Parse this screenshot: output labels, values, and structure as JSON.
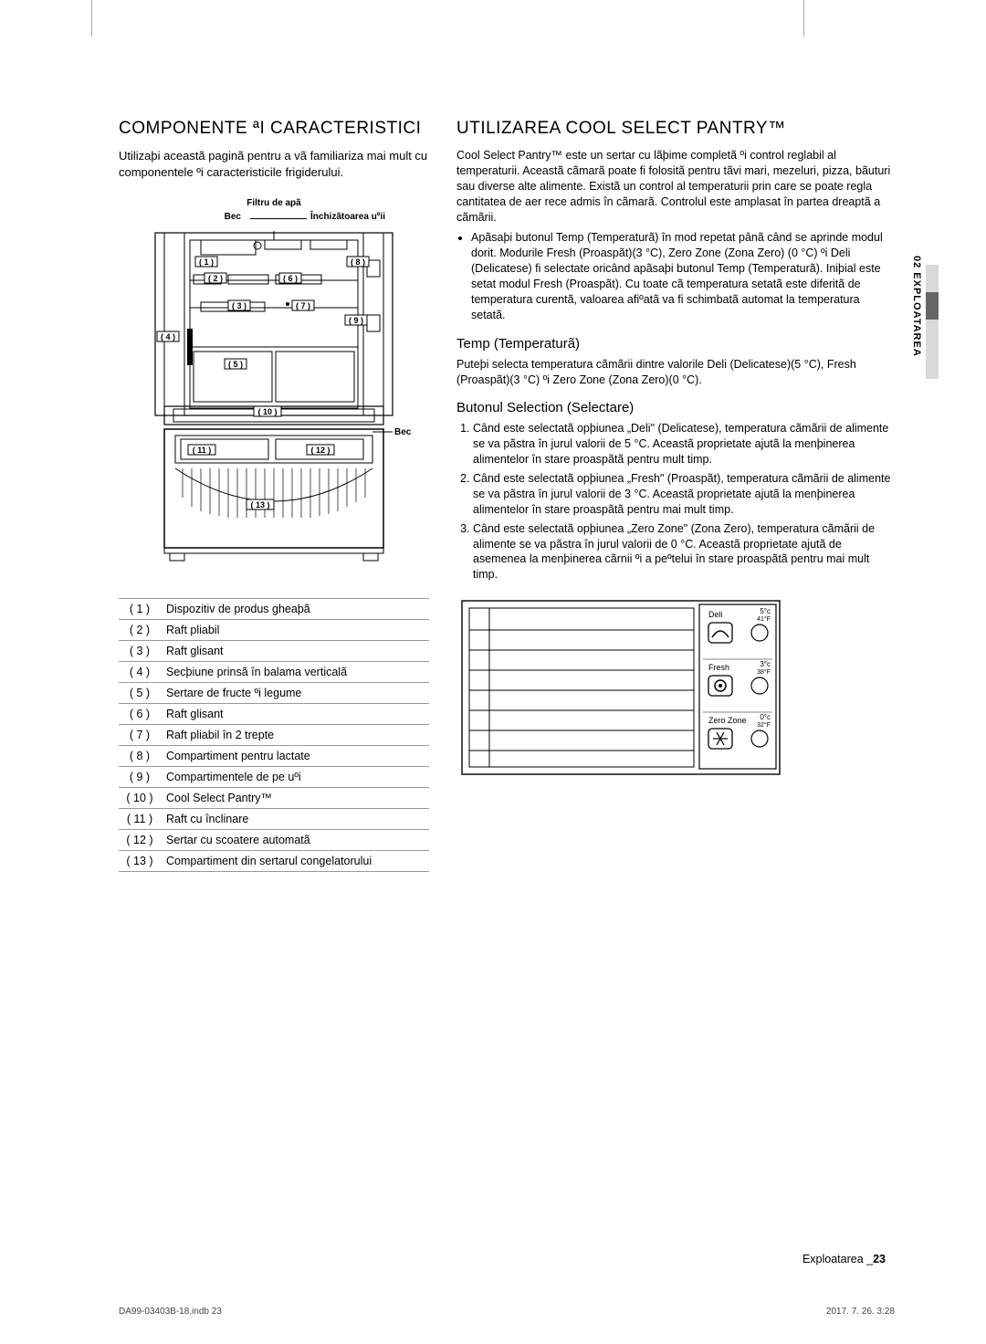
{
  "colors": {
    "line": "#000000",
    "grey_line": "#999999",
    "side_tab_grey": "#d9d9d9",
    "side_tab_dark": "#666666"
  },
  "left": {
    "heading": "COMPONENTE ªI CARACTERISTICI",
    "intro": "Utilizaþi aceastã paginã pentru a vã familiariza mai mult cu componentele ºi caracteristicile frigiderului.",
    "diagram_labels": {
      "top_center": "Filtru de apã",
      "bec": "Bec",
      "inc": "Închizãtoarea uºii",
      "bec2": "Bec"
    },
    "callouts": [
      "( 1 )",
      "( 2 )",
      "( 3 )",
      "( 4 )",
      "( 5 )",
      "( 6 )",
      "( 7 )",
      "( 8 )",
      "( 9 )",
      "( 10 )",
      "( 11 )",
      "( 12 )",
      "( 13 )"
    ],
    "parts": [
      {
        "n": "( 1 )",
        "t": "Dispozitiv de produs gheaþã"
      },
      {
        "n": "( 2 )",
        "t": "Raft pliabil"
      },
      {
        "n": "( 3 )",
        "t": "Raft glisant"
      },
      {
        "n": "( 4 )",
        "t": "Secþiune prinsã în balama verticalã"
      },
      {
        "n": "( 5 )",
        "t": "Sertare de fructe ºi legume"
      },
      {
        "n": "( 6 )",
        "t": "Raft glisant"
      },
      {
        "n": "( 7 )",
        "t": "Raft pliabil în 2 trepte"
      },
      {
        "n": "( 8 )",
        "t": "Compartiment pentru lactate"
      },
      {
        "n": "( 9 )",
        "t": "Compartimentele de pe uºi"
      },
      {
        "n": "( 10 )",
        "t": "Cool Select Pantry™"
      },
      {
        "n": "( 11 )",
        "t": "Raft cu înclinare"
      },
      {
        "n": "( 12 )",
        "t": "Sertar cu scoatere automatã"
      },
      {
        "n": "( 13 )",
        "t": "Compartiment din sertarul congelatorului"
      }
    ]
  },
  "right": {
    "heading": "UTILIZAREA COOL SELECT PANTRY™",
    "p1": "Cool Select Pantry™ este un sertar cu lãþime completã ºi control reglabil al temperaturii. Aceastã cãmarã poate fi folositã pentru tãvi mari, mezeluri, pizza, bãuturi sau diverse alte alimente. Existã un control al temperaturii prin care se poate regla cantitatea de aer rece admis în cãmarã. Controlul este amplasat în partea dreaptã a cãmãrii.",
    "bullet": "Apãsaþi butonul Temp (Temperaturã) în mod repetat pânã când se aprinde modul dorit. Modurile Fresh (Proaspãt)(3 °C), Zero Zone (Zona Zero) (0 °C) ºi Deli (Delicatese) fi selectate oricând apãsaþi butonul Temp (Temperaturã). Iniþial este setat modul Fresh (Proaspãt). Cu toate cã temperatura setatã este diferitã de temperatura curentã, valoarea afiºatã va fi schimbatã automat la temperatura setatã.",
    "h2a": "Temp (Temperaturã)",
    "p2": "Puteþi selecta temperatura cãmãrii dintre valorile Deli (Delicatese)(5 °C), Fresh (Proaspãt)(3 °C) ºi Zero Zone (Zona Zero)(0 °C).",
    "h2b": "Butonul Selection (Selectare)",
    "ol": [
      "Când este selectatã opþiunea „Deli\" (Delicatese), temperatura cãmãrii de alimente se va pãstra în jurul valorii de 5 °C. Aceastã proprietate ajutã la menþinerea alimentelor în stare proaspãtã pentru mult timp.",
      "Când este selectatã opþiunea „Fresh\" (Proaspãt), temperatura cãmãrii de alimente se va pãstra în jurul valorii de 3 °C. Aceastã proprietate ajutã la menþinerea alimentelor în stare proaspãtã pentru mai mult timp.",
      "Când este selectatã opþiunea „Zero Zone\" (Zona Zero), temperatura cãmãrii de alimente se va pãstra în jurul valorii de 0 °C. Aceastã proprietate ajutã de asemenea la menþinerea cãrnii ºi a peºtelui în stare proaspãtã pentru mai mult timp."
    ],
    "panel": {
      "rows": [
        {
          "label": "Deli",
          "t1": "5°c",
          "t2": "41°F",
          "icon": "deli"
        },
        {
          "label": "Fresh",
          "t1": "3°c",
          "t2": "38°F",
          "icon": "fresh"
        },
        {
          "label": "Zero Zone",
          "t1": "0°c",
          "t2": "32°F",
          "icon": "zero"
        }
      ]
    }
  },
  "side_tab": "02 EXPLOATAREA",
  "footer_right_label": "Exploatarea _",
  "footer_right_page": "23",
  "bottom": {
    "left": "DA99-03403B-18.indb   23",
    "right": "2017. 7. 26.     3:28"
  }
}
